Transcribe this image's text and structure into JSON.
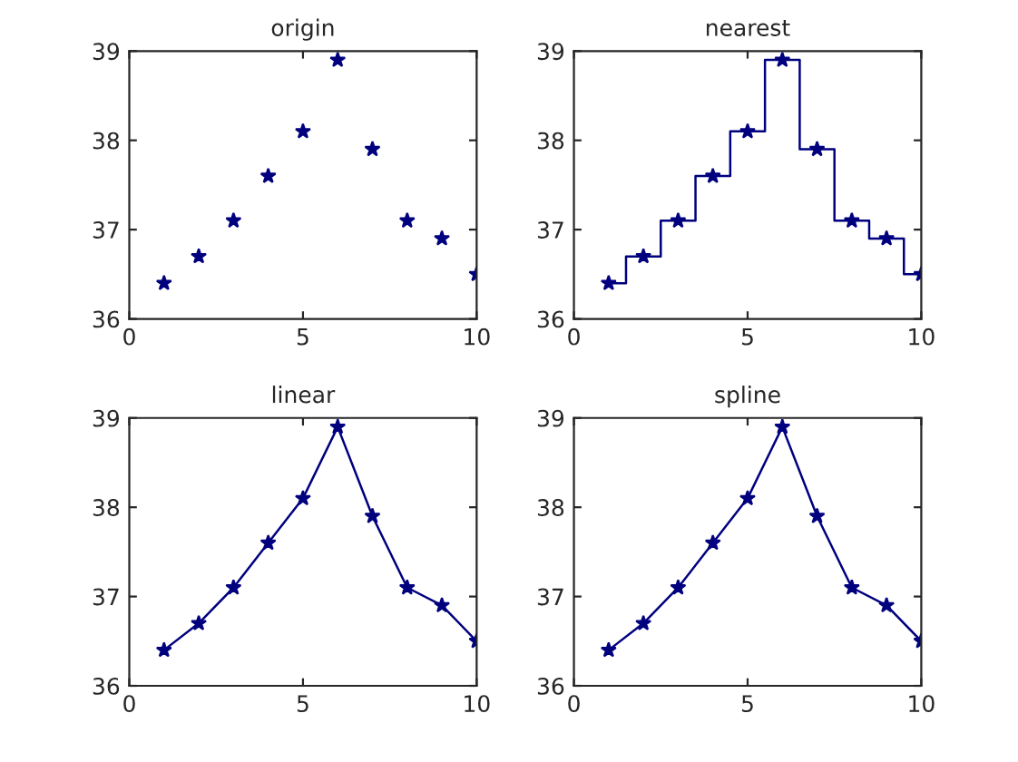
{
  "chart_data": [
    {
      "type": "scatter",
      "title": "origin",
      "x": [
        1,
        2,
        3,
        4,
        5,
        6,
        7,
        8,
        9,
        10
      ],
      "xlim": [
        0,
        10
      ],
      "xticks": [
        0,
        5,
        10
      ],
      "ylim": [
        36,
        39
      ],
      "yticks": [
        36,
        37,
        38,
        39
      ],
      "grid": false,
      "legend": false,
      "series": [
        {
          "marker": "star",
          "color": "#00007f",
          "values": [
            36.4,
            36.7,
            37.1,
            37.6,
            38.1,
            38.9,
            37.9,
            37.1,
            36.9,
            36.5
          ]
        }
      ]
    },
    {
      "type": "step",
      "title": "nearest",
      "x": [
        1,
        2,
        3,
        4,
        5,
        6,
        7,
        8,
        9,
        10
      ],
      "xlim": [
        0,
        10
      ],
      "xticks": [
        0,
        5,
        10
      ],
      "ylim": [
        36,
        39
      ],
      "yticks": [
        36,
        37,
        38,
        39
      ],
      "grid": false,
      "legend": false,
      "series": [
        {
          "marker": "none",
          "color": "#00007f",
          "values": [
            36.4,
            36.7,
            37.1,
            37.6,
            38.1,
            38.9,
            37.9,
            37.1,
            36.9,
            36.5
          ]
        },
        {
          "type": "scatter",
          "marker": "star",
          "color": "#00007f",
          "values": [
            36.4,
            36.7,
            37.1,
            37.6,
            38.1,
            38.9,
            37.9,
            37.1,
            36.9,
            36.5
          ]
        }
      ]
    },
    {
      "type": "line",
      "title": "linear",
      "x": [
        1,
        2,
        3,
        4,
        5,
        6,
        7,
        8,
        9,
        10
      ],
      "xlim": [
        0,
        10
      ],
      "xticks": [
        0,
        5,
        10
      ],
      "ylim": [
        36,
        39
      ],
      "yticks": [
        36,
        37,
        38,
        39
      ],
      "grid": false,
      "legend": false,
      "series": [
        {
          "marker": "none",
          "color": "#00007f",
          "values": [
            36.4,
            36.7,
            37.1,
            37.6,
            38.1,
            38.9,
            37.9,
            37.1,
            36.9,
            36.5
          ]
        },
        {
          "type": "scatter",
          "marker": "star",
          "color": "#00007f",
          "values": [
            36.4,
            36.7,
            37.1,
            37.6,
            38.1,
            38.9,
            37.9,
            37.1,
            36.9,
            36.5
          ]
        }
      ]
    },
    {
      "type": "line",
      "title": "spline",
      "x": [
        1,
        2,
        3,
        4,
        5,
        6,
        7,
        8,
        9,
        10
      ],
      "xlim": [
        0,
        10
      ],
      "xticks": [
        0,
        5,
        10
      ],
      "ylim": [
        36,
        39
      ],
      "yticks": [
        36,
        37,
        38,
        39
      ],
      "grid": false,
      "legend": false,
      "series": [
        {
          "marker": "none",
          "color": "#00007f",
          "values": [
            36.4,
            36.7,
            37.1,
            37.6,
            38.1,
            38.9,
            37.9,
            37.1,
            36.9,
            36.5
          ]
        },
        {
          "type": "scatter",
          "marker": "star",
          "color": "#00007f",
          "values": [
            36.4,
            36.7,
            37.1,
            37.6,
            38.1,
            38.9,
            37.9,
            37.1,
            36.9,
            36.5
          ]
        }
      ]
    }
  ]
}
